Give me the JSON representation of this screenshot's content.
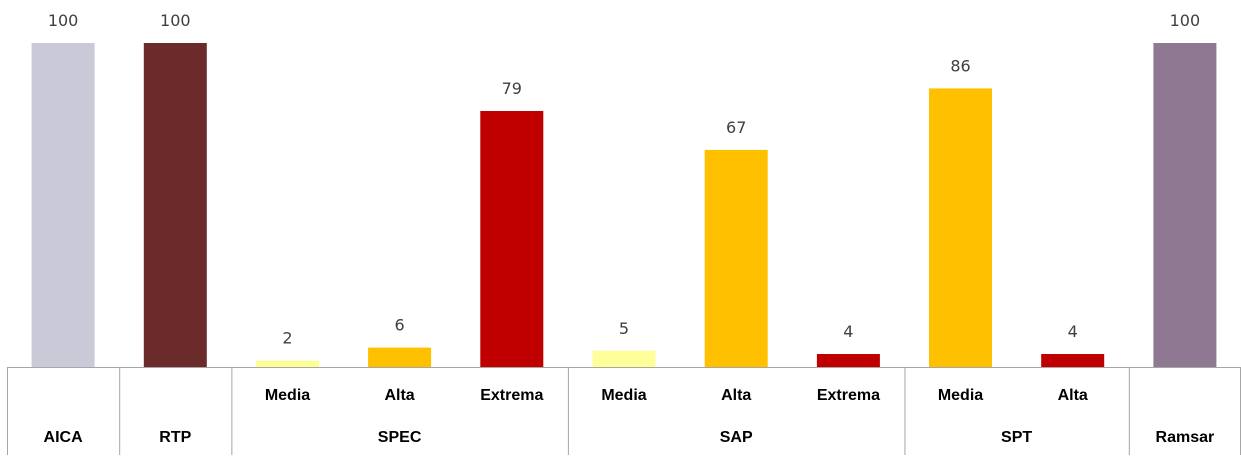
{
  "chart_data": {
    "type": "bar",
    "ylim": [
      0,
      100
    ],
    "grid": false,
    "legend": "none",
    "bars": [
      {
        "category": "",
        "group": "AICA",
        "value": 100,
        "color": "#c9c9d7"
      },
      {
        "category": "",
        "group": "RTP",
        "value": 100,
        "color": "#6b2b2b"
      },
      {
        "category": "Media",
        "group": "SPEC",
        "value": 2,
        "color": "#ffff99"
      },
      {
        "category": "Alta",
        "group": "SPEC",
        "value": 6,
        "color": "#ffc000"
      },
      {
        "category": "Extrema",
        "group": "SPEC",
        "value": 79,
        "color": "#c00000"
      },
      {
        "category": "Media",
        "group": "SAP",
        "value": 5,
        "color": "#ffff99"
      },
      {
        "category": "Alta",
        "group": "SAP",
        "value": 67,
        "color": "#ffc000"
      },
      {
        "category": "Extrema",
        "group": "SAP",
        "value": 4,
        "color": "#c00000"
      },
      {
        "category": "Media",
        "group": "SPT",
        "value": 86,
        "color": "#ffc000"
      },
      {
        "category": "Alta",
        "group": "SPT",
        "value": 4,
        "color": "#c00000"
      },
      {
        "category": "",
        "group": "Ramsar",
        "value": 100,
        "color": "#8e7892"
      }
    ],
    "groups": [
      {
        "name": "AICA",
        "span": 1
      },
      {
        "name": "RTP",
        "span": 1
      },
      {
        "name": "SPEC",
        "span": 3
      },
      {
        "name": "SAP",
        "span": 3
      },
      {
        "name": "SPT",
        "span": 2
      },
      {
        "name": "Ramsar",
        "span": 1
      }
    ]
  }
}
